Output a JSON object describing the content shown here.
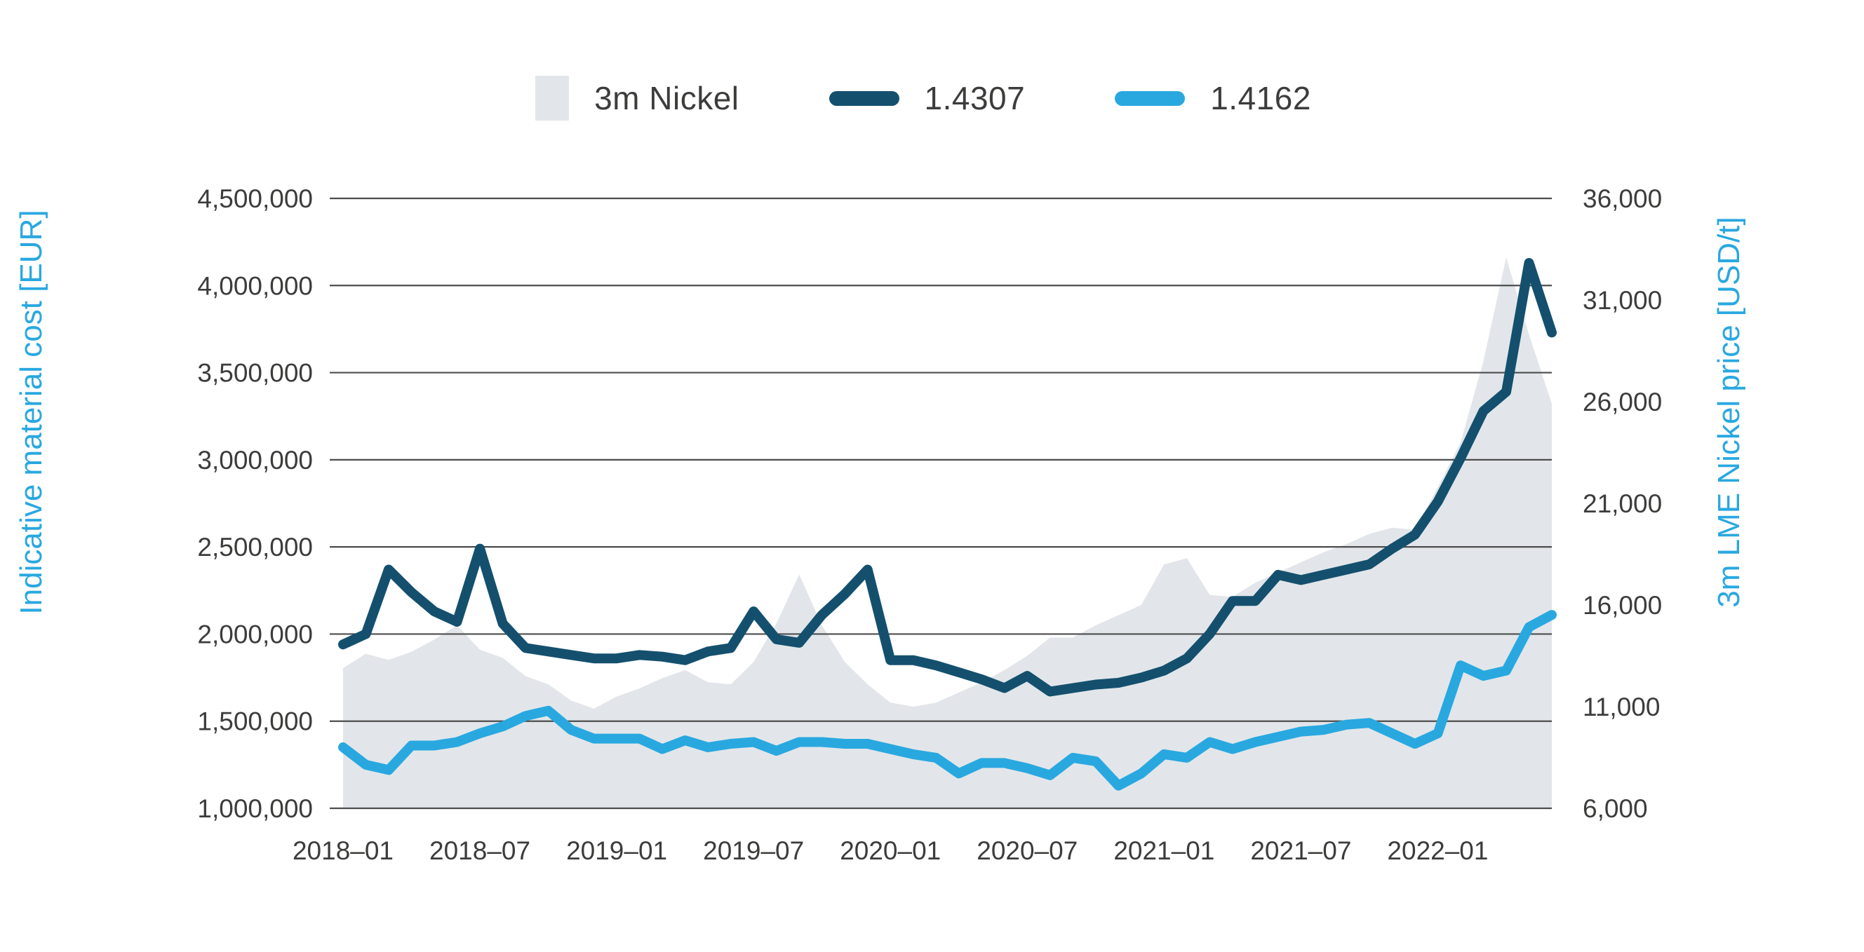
{
  "colors": {
    "background": "#ffffff",
    "area_fill": "#e2e6ea",
    "line_1_color": "#14506e",
    "line_2_color": "#29a8e0",
    "gridline_color": "#4d4d4d",
    "tick_text_color": "#3c3c3b",
    "axis_title_color": "#29a8e0"
  },
  "legend": {
    "area_label": "3m Nickel",
    "line1_label": "1.4307",
    "line2_label": "1.4162"
  },
  "chart_data": {
    "type": "area+line",
    "title": "",
    "left_axis": {
      "label": "Indicative material cost [EUR]",
      "min": 1000000,
      "max": 4500000,
      "tick_labels": [
        "4,500,000",
        "4,000,000",
        "3,500,000",
        "3,000,000",
        "2,500,000",
        "2,000,000",
        "1,500,000",
        "1,000,000"
      ]
    },
    "right_axis": {
      "label": "3m LME Nickel price [USD/t]",
      "min": 6000,
      "max": 36000,
      "tick_labels": [
        "36,000",
        "31,000",
        "26,000",
        "21,000",
        "16,000",
        "11,000",
        "6,000"
      ]
    },
    "x_tick_labels": [
      "2018–01",
      "2018–07",
      "2019–01",
      "2019–07",
      "2020–01",
      "2020–07",
      "2021–01",
      "2021–07",
      "2022–01"
    ],
    "x_tick_every": 6,
    "grid": true,
    "legend_position": "top",
    "categories": [
      "2018-01",
      "2018-02",
      "2018-03",
      "2018-04",
      "2018-05",
      "2018-06",
      "2018-07",
      "2018-08",
      "2018-09",
      "2018-10",
      "2018-11",
      "2018-12",
      "2019-01",
      "2019-02",
      "2019-03",
      "2019-04",
      "2019-05",
      "2019-06",
      "2019-07",
      "2019-08",
      "2019-09",
      "2019-10",
      "2019-11",
      "2019-12",
      "2020-01",
      "2020-02",
      "2020-03",
      "2020-04",
      "2020-05",
      "2020-06",
      "2020-07",
      "2020-08",
      "2020-09",
      "2020-10",
      "2020-11",
      "2020-12",
      "2021-01",
      "2021-02",
      "2021-03",
      "2021-04",
      "2021-05",
      "2021-06",
      "2021-07",
      "2021-08",
      "2021-09",
      "2021-10",
      "2021-11",
      "2021-12",
      "2022-01",
      "2022-02",
      "2022-03",
      "2022-04",
      "2022-05",
      "2022-06"
    ],
    "area_series": {
      "name": "3m Nickel",
      "axis": "right",
      "unit": "USD/t",
      "values": [
        12900,
        13600,
        13300,
        13700,
        14300,
        15000,
        13800,
        13400,
        12500,
        12100,
        11300,
        10900,
        11500,
        11900,
        12400,
        12800,
        12200,
        12100,
        13200,
        15100,
        17500,
        15000,
        13200,
        12100,
        11200,
        11000,
        11200,
        11700,
        12200,
        12800,
        13500,
        14400,
        14400,
        15000,
        15500,
        16000,
        18000,
        18300,
        16500,
        16400,
        17100,
        17600,
        18100,
        18600,
        19000,
        19500,
        19800,
        19700,
        21800,
        24000,
        28000,
        33100,
        29300,
        25900
      ]
    },
    "series": [
      {
        "name": "1.4307",
        "axis": "left",
        "unit": "EUR",
        "values": [
          1940000,
          2000000,
          2370000,
          2240000,
          2130000,
          2070000,
          2490000,
          2060000,
          1920000,
          1900000,
          1880000,
          1860000,
          1860000,
          1880000,
          1870000,
          1850000,
          1900000,
          1920000,
          2130000,
          1970000,
          1950000,
          2110000,
          2230000,
          2370000,
          1850000,
          1850000,
          1820000,
          1780000,
          1740000,
          1690000,
          1760000,
          1670000,
          1690000,
          1710000,
          1720000,
          1750000,
          1790000,
          1860000,
          2000000,
          2190000,
          2190000,
          2340000,
          2310000,
          2340000,
          2370000,
          2400000,
          2490000,
          2570000,
          2760000,
          3010000,
          3280000,
          3390000,
          4130000,
          3730000
        ]
      },
      {
        "name": "1.4162",
        "axis": "left",
        "unit": "EUR",
        "values": [
          1350000,
          1250000,
          1220000,
          1360000,
          1360000,
          1380000,
          1430000,
          1470000,
          1530000,
          1560000,
          1450000,
          1400000,
          1400000,
          1400000,
          1340000,
          1390000,
          1350000,
          1370000,
          1380000,
          1330000,
          1380000,
          1380000,
          1370000,
          1370000,
          1340000,
          1310000,
          1290000,
          1200000,
          1260000,
          1260000,
          1230000,
          1190000,
          1290000,
          1270000,
          1130000,
          1200000,
          1310000,
          1290000,
          1380000,
          1340000,
          1380000,
          1410000,
          1440000,
          1450000,
          1480000,
          1490000,
          1430000,
          1370000,
          1430000,
          1820000,
          1760000,
          1790000,
          2040000,
          2110000
        ]
      }
    ]
  }
}
